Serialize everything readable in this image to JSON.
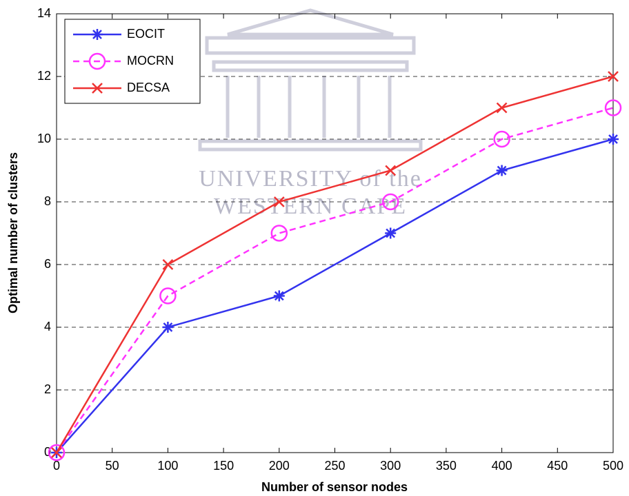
{
  "chart_data": {
    "type": "line",
    "xlabel": "Number of sensor nodes",
    "ylabel": "Optimal number of clusters",
    "watermark": [
      "UNIVERSITY of the",
      "WESTERN CAPE"
    ],
    "x": [
      0,
      100,
      200,
      300,
      400,
      500
    ],
    "series": [
      {
        "name": "EOCIT",
        "color": "#3333ee",
        "marker": "*",
        "linestyle": "solid",
        "values": [
          0,
          4,
          5,
          7,
          9,
          10
        ]
      },
      {
        "name": "MOCRN",
        "color": "#ff33ff",
        "marker": "o",
        "linestyle": "dashed",
        "values": [
          0,
          5,
          7,
          8,
          10,
          11
        ]
      },
      {
        "name": "DECSA",
        "color": "#ee3333",
        "marker": "x",
        "linestyle": "solid",
        "values": [
          0,
          6,
          8,
          9,
          11,
          12
        ]
      }
    ],
    "xlim": [
      0,
      500
    ],
    "xticks": [
      0,
      50,
      100,
      150,
      200,
      250,
      300,
      350,
      400,
      450,
      500
    ],
    "ylim": [
      0,
      14
    ],
    "yticks": [
      0,
      2,
      4,
      6,
      8,
      10,
      12,
      14
    ],
    "grid": "y",
    "legend": "upper left"
  }
}
